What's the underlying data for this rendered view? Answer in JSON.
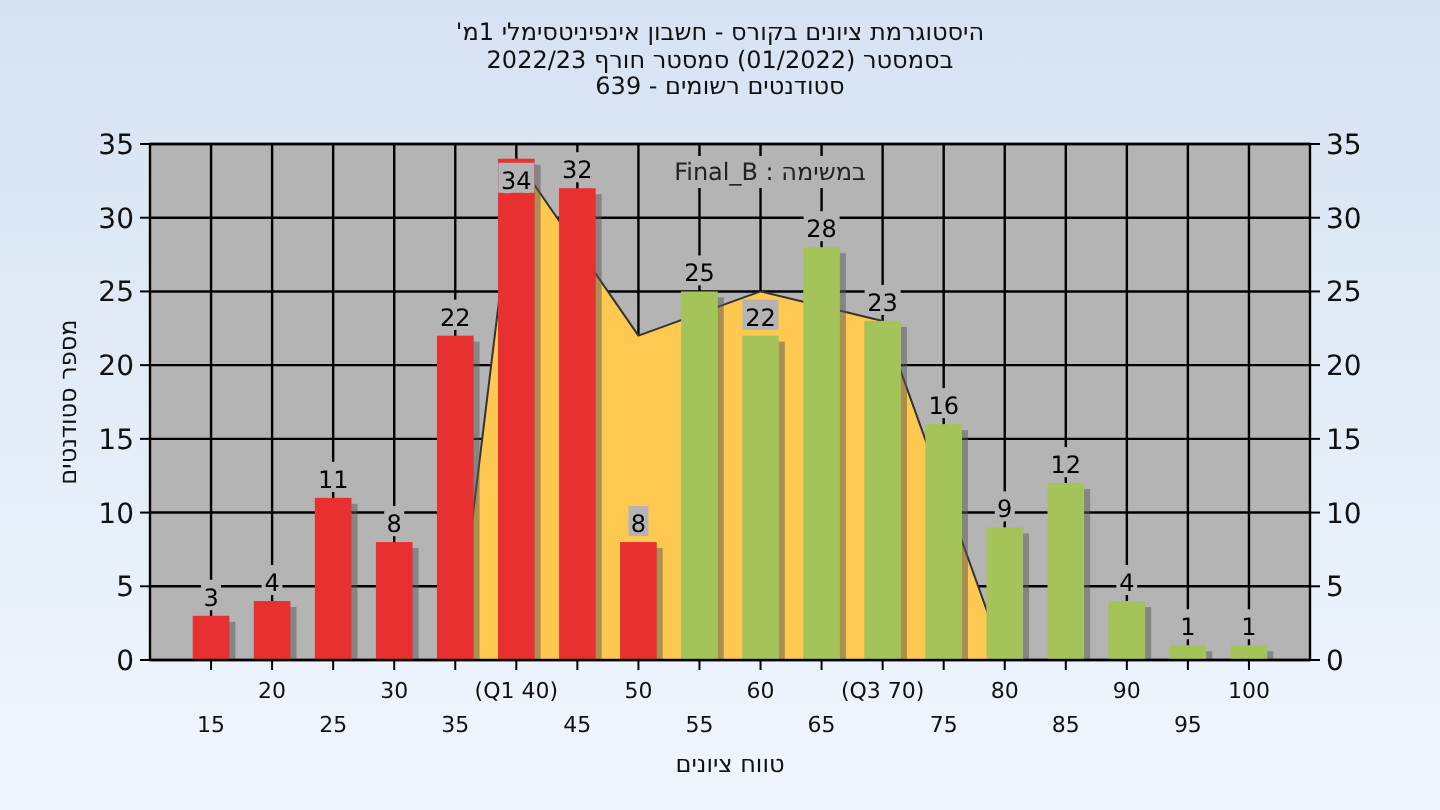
{
  "chart_data": {
    "type": "bar",
    "title": "היסטוגרמת ציונים בקורס - חשבון אינפיניטסימלי 1מ'",
    "subtitle": [
      "בסמסטר  (01/2022)  סמסטר חורף 2022/23",
      "סטודנטים רשומים - 639"
    ],
    "xlabel": "טווח ציונים",
    "ylabel": "מספר סטודנטים",
    "annotations": [
      "במשימה : Final_B"
    ],
    "categories": [
      "15",
      "20",
      "25",
      "30",
      "35",
      "(Q1 40)",
      "45",
      "50",
      "55",
      "60",
      "65",
      "(Q3 70)",
      "75",
      "80",
      "85",
      "90",
      "95",
      "100"
    ],
    "series": [
      {
        "type": "area",
        "color": "#ffc850",
        "values": [
          0,
          0,
          0,
          0,
          0,
          34,
          null,
          22,
          null,
          25,
          null,
          23,
          null,
          0,
          0,
          0,
          0,
          0
        ]
      },
      {
        "colors": [
          "#e83030",
          "#e83030",
          "#e83030",
          "#e83030",
          "#e83030",
          "#e83030",
          "#e83030",
          "#e83030",
          "#a4c45a",
          "#a4c45a",
          "#a4c45a",
          "#a4c45a",
          "#a4c45a",
          "#a4c45a",
          "#a4c45a",
          "#a4c45a",
          "#a4c45a",
          "#a4c45a"
        ],
        "values": [
          3,
          4,
          11,
          8,
          22,
          34,
          32,
          8,
          25,
          22,
          28,
          23,
          16,
          9,
          12,
          4,
          1,
          1
        ],
        "value_labels": [
          "3",
          "4",
          "11",
          "8",
          "22",
          "34",
          "32",
          "8",
          "25",
          "22",
          "28",
          "23",
          "16",
          "9",
          "12",
          "4",
          "1",
          "1"
        ]
      }
    ],
    "ylim": [
      0,
      35
    ],
    "yticks": [
      0,
      5,
      10,
      15,
      20,
      25,
      30,
      35
    ],
    "y2lim": [
      0,
      35
    ],
    "y2ticks": [
      0,
      5,
      10,
      15,
      20,
      25,
      30,
      35
    ],
    "grid": true
  }
}
